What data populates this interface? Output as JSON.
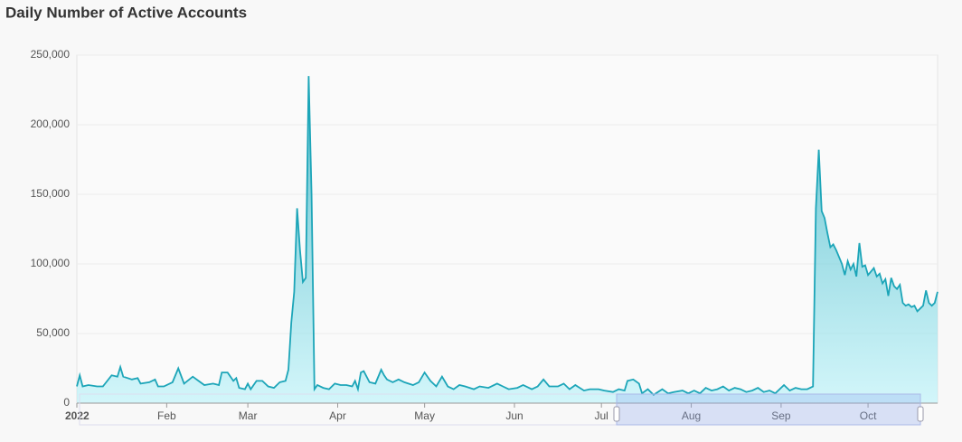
{
  "chart_data": {
    "type": "area",
    "title": "Daily Number of Active Accounts",
    "x": [
      1,
      2,
      3,
      5,
      8,
      10,
      13,
      15,
      16,
      17,
      20,
      22,
      23,
      26,
      28,
      29,
      31,
      34,
      36,
      38,
      41,
      43,
      45,
      48,
      50,
      51,
      53,
      55,
      56,
      57,
      59,
      60,
      61,
      63,
      65,
      67,
      69,
      71,
      73,
      74,
      75,
      76,
      77,
      78,
      79,
      80,
      81,
      82,
      83,
      84,
      86,
      88,
      90,
      92,
      94,
      96,
      97,
      98,
      99,
      100,
      102,
      104,
      106,
      107,
      108,
      110,
      112,
      114,
      117,
      119,
      121,
      123,
      125,
      127,
      129,
      131,
      133,
      135,
      138,
      140,
      143,
      146,
      148,
      150,
      153,
      155,
      158,
      160,
      162,
      164,
      167,
      169,
      171,
      173,
      176,
      178,
      181,
      183,
      186,
      188,
      190,
      191,
      193,
      195,
      196,
      198,
      200,
      203,
      205,
      207,
      210,
      212,
      214,
      216,
      218,
      220,
      222,
      224,
      226,
      228,
      230,
      232,
      234,
      236,
      238,
      240,
      242,
      245,
      247,
      249,
      251,
      253,
      255,
      256,
      257,
      258,
      259,
      260,
      261,
      262,
      263,
      264,
      265,
      266,
      267,
      268,
      269,
      270,
      271,
      272,
      273,
      274,
      276,
      277,
      278,
      279,
      280,
      281,
      282,
      283,
      284,
      285,
      286,
      287,
      288,
      289,
      290,
      291,
      292,
      293,
      294,
      295,
      296,
      297,
      298
    ],
    "values": [
      12000,
      20000,
      12000,
      13000,
      12000,
      12000,
      20000,
      19000,
      26000,
      19000,
      17000,
      18000,
      14000,
      15000,
      17000,
      12000,
      12000,
      15000,
      25000,
      14000,
      19000,
      16000,
      13000,
      14000,
      13000,
      22000,
      22000,
      16000,
      18000,
      11000,
      10000,
      14000,
      10000,
      16000,
      16000,
      12000,
      11000,
      15000,
      16000,
      24000,
      58000,
      80000,
      140000,
      110000,
      87000,
      90000,
      235000,
      150000,
      10000,
      13000,
      11000,
      10000,
      14000,
      13000,
      13000,
      12000,
      16000,
      10000,
      22000,
      23000,
      15000,
      14000,
      24000,
      20000,
      17000,
      15000,
      17000,
      15000,
      13000,
      15000,
      22000,
      16000,
      12000,
      19000,
      12000,
      10000,
      13000,
      12000,
      10000,
      12000,
      11000,
      14000,
      12000,
      10000,
      11000,
      13000,
      10000,
      12000,
      17000,
      12000,
      12000,
      14000,
      10000,
      13000,
      9000,
      10000,
      10000,
      9000,
      8000,
      10000,
      9000,
      16000,
      17000,
      14000,
      7000,
      10000,
      6000,
      10000,
      7000,
      8000,
      9000,
      7000,
      9000,
      7000,
      11000,
      9000,
      10000,
      12000,
      9000,
      11000,
      10000,
      8000,
      9000,
      11000,
      8000,
      9000,
      7000,
      13000,
      9000,
      11000,
      10000,
      10000,
      12000,
      140000,
      182000,
      138000,
      133000,
      122000,
      112000,
      114000,
      110000,
      105000,
      100000,
      92000,
      102000,
      96000,
      100000,
      91000,
      115000,
      98000,
      99000,
      92000,
      97000,
      91000,
      93000,
      86000,
      89000,
      77000,
      90000,
      84000,
      82000,
      85000,
      72000,
      70000,
      71000,
      69000,
      70000,
      66000,
      68000,
      70000,
      81000,
      72000,
      70000,
      72000,
      80000
    ],
    "color": "#1ca5b8",
    "xlim": [
      1,
      298
    ],
    "xticks": [
      {
        "value": 1,
        "label": "2022"
      },
      {
        "value": 32,
        "label": "Feb"
      },
      {
        "value": 60,
        "label": "Mar"
      },
      {
        "value": 91,
        "label": "Apr"
      },
      {
        "value": 121,
        "label": "May"
      },
      {
        "value": 152,
        "label": "Jun"
      },
      {
        "value": 182,
        "label": "Jul"
      },
      {
        "value": 213,
        "label": "Aug"
      },
      {
        "value": 244,
        "label": "Sep"
      },
      {
        "value": 274,
        "label": "Oct"
      }
    ],
    "ylim": [
      0,
      250000
    ],
    "yticks": [
      0,
      {
        "value": 50000,
        "label": "50,000"
      },
      {
        "value": 100000,
        "label": "100,000"
      },
      {
        "value": 150000,
        "label": "150,000"
      },
      {
        "value": 200000,
        "label": "200,000"
      },
      {
        "value": 250000,
        "label": "250,000"
      }
    ],
    "grid": true
  }
}
